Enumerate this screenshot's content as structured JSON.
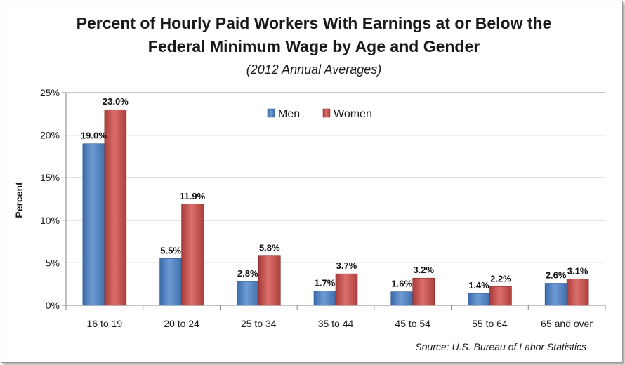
{
  "colors": {
    "men": "#4f81bd",
    "men_dark": "#2c5a92",
    "women": "#c0504d",
    "women_dark": "#8c2b28",
    "gridline": "#8c8c8c",
    "axis": "#868686"
  },
  "chart_data": {
    "type": "bar",
    "title_lines": [
      "Percent of Hourly Paid Workers With Earnings at or Below the",
      "Federal Minimum Wage by Age and Gender"
    ],
    "subtitle": "(2012 Annual Averages)",
    "xlabel": "",
    "ylabel": "Percent",
    "ylim": [
      0,
      25
    ],
    "y_ticks": [
      0,
      5,
      10,
      15,
      20,
      25
    ],
    "y_tick_labels": [
      "0%",
      "5%",
      "10%",
      "15%",
      "20%",
      "25%"
    ],
    "grid": true,
    "legend_position": "top-center",
    "categories": [
      "16 to 19",
      "20 to 24",
      "25 to 34",
      "35 to 44",
      "45 to 54",
      "55 to 64",
      "65 and over"
    ],
    "series": [
      {
        "name": "Men",
        "values": [
          19.0,
          5.5,
          2.8,
          1.7,
          1.6,
          1.4,
          2.6
        ],
        "labels": [
          "19.0%",
          "5.5%",
          "2.8%",
          "1.7%",
          "1.6%",
          "1.4%",
          "2.6%"
        ]
      },
      {
        "name": "Women",
        "values": [
          23.0,
          11.9,
          5.8,
          3.7,
          3.2,
          2.2,
          3.1
        ],
        "labels": [
          "23.0%",
          "11.9%",
          "5.8%",
          "3.7%",
          "3.2%",
          "2.2%",
          "3.1%"
        ]
      }
    ],
    "source": "Source: U.S. Bureau of Labor Statistics"
  }
}
